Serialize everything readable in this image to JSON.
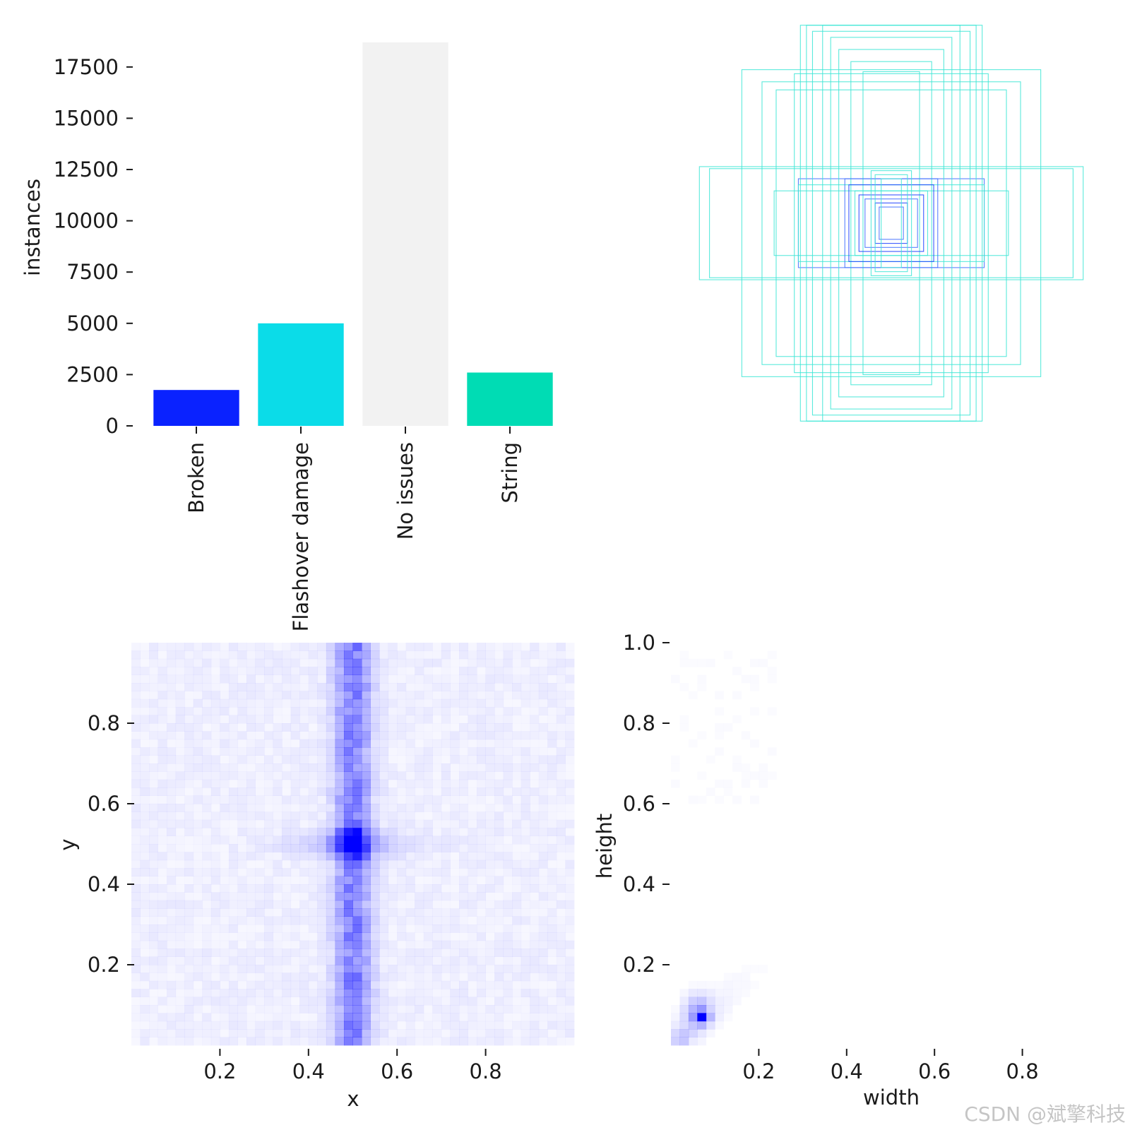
{
  "chart_data": [
    {
      "type": "bar",
      "categories": [
        "Broken",
        "Flashover damage",
        "No issues",
        "String"
      ],
      "values": [
        1750,
        5000,
        18700,
        2600
      ],
      "colors": [
        "#0a22ff",
        "#0bdce8",
        "#f2f2f2",
        "#00dcb4"
      ],
      "ylabel": "instances",
      "xlabel": "",
      "ylim": [
        0,
        18700
      ],
      "yticks": [
        "0",
        "2500",
        "5000",
        "7500",
        "10000",
        "12500",
        "15000",
        "17500"
      ]
    },
    {
      "type": "overlay",
      "description_values": "Overlaid label boxes centered on the same point (normalized width/height)",
      "boxes": [
        {
          "w": 0.95,
          "h": 0.28,
          "color": "#3ee6d6"
        },
        {
          "w": 0.9,
          "h": 0.27,
          "color": "#3ee6d6"
        },
        {
          "w": 0.58,
          "h": 0.16,
          "color": "#3ee6d6"
        },
        {
          "w": 0.46,
          "h": 0.22,
          "color": "#3e6cff"
        },
        {
          "w": 0.45,
          "h": 0.98,
          "color": "#3ee6d6"
        },
        {
          "w": 0.42,
          "h": 0.98,
          "color": "#3ee6d6"
        },
        {
          "w": 0.39,
          "h": 0.95,
          "color": "#3ee6d6"
        },
        {
          "w": 0.34,
          "h": 0.98,
          "color": "#3ee6d6"
        },
        {
          "w": 0.3,
          "h": 0.92,
          "color": "#3ee6d6"
        },
        {
          "w": 0.26,
          "h": 0.86,
          "color": "#3ee6d6"
        },
        {
          "w": 0.2,
          "h": 0.8,
          "color": "#3ee6d6"
        },
        {
          "w": 0.14,
          "h": 0.75,
          "color": "#3ee6d6"
        },
        {
          "w": 0.74,
          "h": 0.76,
          "color": "#3ee6d6"
        },
        {
          "w": 0.64,
          "h": 0.7,
          "color": "#3ee6d6"
        },
        {
          "w": 0.57,
          "h": 0.66,
          "color": "#3ee6d6"
        },
        {
          "w": 0.48,
          "h": 0.74,
          "color": "#3ee6d6"
        },
        {
          "w": 0.46,
          "h": 0.19,
          "color": "#3ee6d6"
        },
        {
          "w": 0.23,
          "h": 0.22,
          "color": "#3e6cff"
        },
        {
          "w": 0.21,
          "h": 0.19,
          "color": "#1a3cff"
        },
        {
          "w": 0.18,
          "h": 0.16,
          "color": "#3ee6d6"
        },
        {
          "w": 0.16,
          "h": 0.14,
          "color": "#1a3cff"
        },
        {
          "w": 0.13,
          "h": 0.12,
          "color": "#3e6cff"
        },
        {
          "w": 0.1,
          "h": 0.26,
          "color": "#3ee6d6"
        },
        {
          "w": 0.08,
          "h": 0.1,
          "color": "#1a3cff"
        },
        {
          "w": 0.08,
          "h": 0.24,
          "color": "#3ee6d6"
        },
        {
          "w": 0.06,
          "h": 0.08,
          "color": "#3e6cff"
        },
        {
          "w": 0.05,
          "h": 0.22,
          "color": "#3ee6d6"
        }
      ]
    },
    {
      "type": "heatmap",
      "xlabel": "x",
      "ylabel": "y",
      "xlim": [
        0,
        1
      ],
      "ylim": [
        0,
        1
      ],
      "bins": 50,
      "xticks": [
        "0.2",
        "0.4",
        "0.6",
        "0.8"
      ],
      "yticks": [
        "0.2",
        "0.4",
        "0.6",
        "0.8"
      ],
      "cmap_color": "#0000ff",
      "peak": {
        "x": 0.5,
        "y": 0.5
      },
      "bands": [
        {
          "orientation": "vertical",
          "center": 0.5,
          "width": 0.04,
          "strength": 0.55
        },
        {
          "orientation": "horizontal",
          "center": 0.5,
          "width": 0.03,
          "strength": 0.25
        }
      ]
    },
    {
      "type": "heatmap",
      "xlabel": "width",
      "ylabel": "height",
      "xlim": [
        0,
        1
      ],
      "ylim": [
        0,
        1
      ],
      "bins": 50,
      "xticks": [
        "0.2",
        "0.4",
        "0.6",
        "0.8"
      ],
      "yticks": [
        "0.2",
        "0.4",
        "0.6",
        "0.8",
        "1.0"
      ],
      "cmap_color": "#0000ff",
      "peak": {
        "x": 0.07,
        "y": 0.07
      }
    }
  ],
  "watermark": "CSDN @斌擎科技"
}
